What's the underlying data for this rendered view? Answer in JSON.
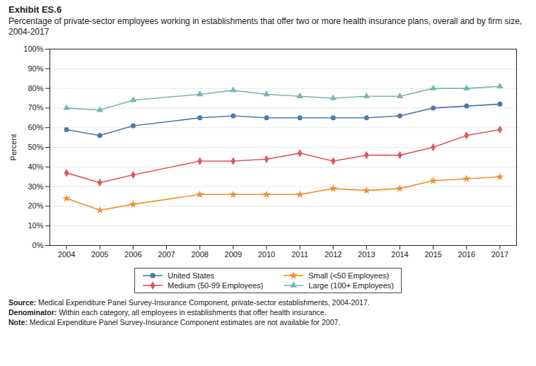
{
  "chart_data": {
    "type": "line",
    "title": "Exhibit ES.6",
    "subtitle": "Percentage of private-sector employees working in establishments that offer two or more health insurance plans, overall and by firm size, 2004-2017",
    "x": [
      2004,
      2005,
      2006,
      2008,
      2009,
      2010,
      2011,
      2012,
      2013,
      2014,
      2015,
      2016,
      2017
    ],
    "series": [
      {
        "name": "United States",
        "marker": "circle",
        "values": [
          59,
          56,
          61,
          65,
          66,
          65,
          65,
          65,
          65,
          66,
          70,
          71,
          72
        ]
      },
      {
        "name": "Small (<50 Employees)",
        "marker": "star",
        "values": [
          24,
          18,
          21,
          26,
          26,
          26,
          26,
          29,
          28,
          29,
          33,
          34,
          35
        ]
      },
      {
        "name": "Medium (50-99 Employees)",
        "marker": "diamond",
        "values": [
          37,
          32,
          36,
          43,
          43,
          44,
          47,
          43,
          46,
          46,
          50,
          56,
          59
        ]
      },
      {
        "name": "Large (100+ Employees)",
        "marker": "triangle",
        "values": [
          70,
          69,
          74,
          77,
          79,
          77,
          76,
          75,
          76,
          76,
          80,
          80,
          81
        ]
      }
    ],
    "ylabel": "Percent",
    "xlim": [
      2003.5,
      2017.5
    ],
    "xticks": [
      2004,
      2005,
      2006,
      2007,
      2008,
      2009,
      2010,
      2011,
      2012,
      2013,
      2014,
      2015,
      2016,
      2017
    ],
    "ylim": [
      0,
      100
    ],
    "yticks": [
      {
        "value": 0,
        "label": "0%"
      },
      {
        "value": 10,
        "label": "10%"
      },
      {
        "value": 20,
        "label": "20%"
      },
      {
        "value": 30,
        "label": "30%"
      },
      {
        "value": 40,
        "label": "40%"
      },
      {
        "value": 50,
        "label": "50%"
      },
      {
        "value": 60,
        "label": "60%"
      },
      {
        "value": 70,
        "label": "70%"
      },
      {
        "value": 80,
        "label": "80%"
      },
      {
        "value": 90,
        "label": "90%"
      },
      {
        "value": 100,
        "label": "100%"
      }
    ],
    "grid": true,
    "legend": "bottom",
    "annotations": [
      "Source: Medical Expenditure Panel Survey-Insurance Component, private-sector establishments, 2004-2017.",
      "Denominator: Within each category, all employees in establishments that offer health insurance.",
      "Note: Medical Expenditure Panel Survey-Insurance Component estimates are not available for 2007."
    ]
  }
}
